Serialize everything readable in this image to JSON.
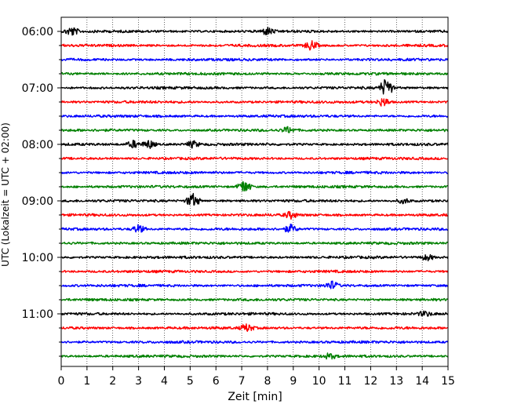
{
  "chart_data": {
    "type": "line",
    "title": "",
    "xlabel": "Zeit  [min]",
    "ylabel": "UTC (Lokalzeit = UTC + 02:00)",
    "xlim": [
      0,
      15
    ],
    "x_ticks": [
      0,
      1,
      2,
      3,
      4,
      5,
      6,
      7,
      8,
      9,
      10,
      11,
      12,
      13,
      14,
      15
    ],
    "grid": "vertical dotted",
    "y_tick_labels": [
      "06:00",
      "07:00",
      "08:00",
      "09:00",
      "10:00",
      "11:00"
    ],
    "trace_colors": [
      "#000000",
      "#ff0000",
      "#0000ff",
      "#008000"
    ],
    "series": [
      {
        "start": "06:00",
        "events": [
          {
            "t": 0.4,
            "a": 1.2
          },
          {
            "t": 8.0,
            "a": 1.0
          }
        ]
      },
      {
        "start": "06:15",
        "events": [
          {
            "t": 9.7,
            "a": 1.3
          }
        ]
      },
      {
        "start": "06:30",
        "events": []
      },
      {
        "start": "06:45",
        "events": []
      },
      {
        "start": "07:00",
        "events": [
          {
            "t": 12.6,
            "a": 2.6
          }
        ]
      },
      {
        "start": "07:15",
        "events": [
          {
            "t": 12.5,
            "a": 1.2
          }
        ]
      },
      {
        "start": "07:30",
        "events": []
      },
      {
        "start": "07:45",
        "events": [
          {
            "t": 8.8,
            "a": 0.8
          }
        ]
      },
      {
        "start": "08:00",
        "events": [
          {
            "t": 2.8,
            "a": 1.0
          },
          {
            "t": 3.4,
            "a": 1.2
          },
          {
            "t": 5.1,
            "a": 0.9
          }
        ]
      },
      {
        "start": "08:15",
        "events": []
      },
      {
        "start": "08:30",
        "events": []
      },
      {
        "start": "08:45",
        "events": [
          {
            "t": 7.1,
            "a": 1.8
          }
        ]
      },
      {
        "start": "09:00",
        "events": [
          {
            "t": 5.1,
            "a": 2.0
          },
          {
            "t": 13.3,
            "a": 0.7
          }
        ]
      },
      {
        "start": "09:15",
        "events": [
          {
            "t": 8.9,
            "a": 0.9
          }
        ]
      },
      {
        "start": "09:30",
        "events": [
          {
            "t": 3.0,
            "a": 1.1
          },
          {
            "t": 8.9,
            "a": 1.1
          }
        ]
      },
      {
        "start": "09:45",
        "events": []
      },
      {
        "start": "10:00",
        "events": [
          {
            "t": 14.2,
            "a": 0.8
          }
        ]
      },
      {
        "start": "10:15",
        "events": []
      },
      {
        "start": "10:30",
        "events": [
          {
            "t": 10.5,
            "a": 1.1
          }
        ]
      },
      {
        "start": "10:45",
        "events": []
      },
      {
        "start": "11:00",
        "events": [
          {
            "t": 14.1,
            "a": 0.6
          }
        ]
      },
      {
        "start": "11:15",
        "events": [
          {
            "t": 7.2,
            "a": 1.0
          }
        ]
      },
      {
        "start": "11:30",
        "events": []
      },
      {
        "start": "11:45",
        "events": [
          {
            "t": 10.4,
            "a": 0.7
          }
        ]
      }
    ]
  }
}
